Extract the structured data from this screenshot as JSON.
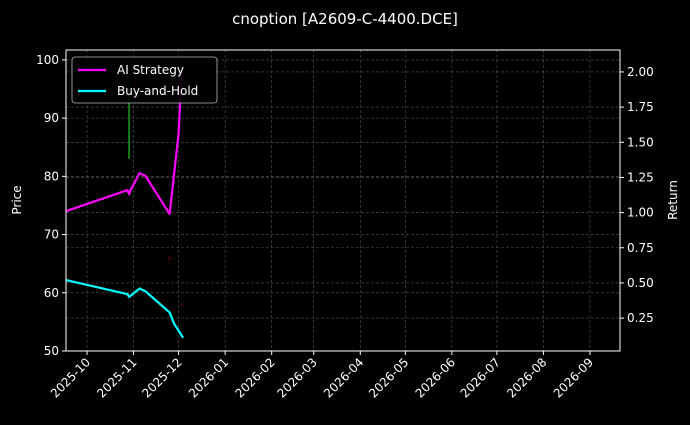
{
  "chart_data": {
    "type": "line",
    "title": "cnoption [A2609-C-4400.DCE]",
    "ylabel": "Price",
    "y2label": "Return",
    "xlim": [
      "2025-09-17",
      "2026-09-21"
    ],
    "ylim": [
      50,
      101.7
    ],
    "y2lim": [
      0.016,
      2.156
    ],
    "grid": true,
    "legend_placement": "top-left",
    "x_ticks": [
      "2025-10",
      "2025-11",
      "2025-12",
      "2026-01",
      "2026-02",
      "2026-03",
      "2026-04",
      "2026-05",
      "2026-06",
      "2026-07",
      "2026-08",
      "2026-09"
    ],
    "y_ticks": [
      50,
      60,
      70,
      80,
      90,
      100
    ],
    "y2_ticks": [
      "0.25",
      "0.50",
      "0.75",
      "1.00",
      "1.25",
      "1.50",
      "1.75",
      "2.00"
    ],
    "series": [
      {
        "name": "AI Strategy",
        "axis": "right",
        "color": "#ff00ff",
        "x": [
          "2025-09-17",
          "2025-10-28",
          "2025-10-29",
          "2025-10-30",
          "2025-11-05",
          "2025-11-09",
          "2025-11-25",
          "2025-12-01",
          "2025-12-03"
        ],
        "values": [
          1.01,
          1.16,
          1.13,
          1.16,
          1.28,
          1.26,
          0.99,
          1.56,
          2.0
        ]
      },
      {
        "name": "Buy-and-Hold",
        "axis": "right",
        "color": "#00ffff",
        "x": [
          "2025-09-17",
          "2025-10-28",
          "2025-10-29",
          "2025-11-05",
          "2025-11-09",
          "2025-11-25",
          "2025-11-28",
          "2025-12-04"
        ],
        "values": [
          0.52,
          0.42,
          0.4,
          0.46,
          0.44,
          0.29,
          0.21,
          0.11
        ]
      }
    ],
    "price_marks": [
      {
        "x": "2025-10-29",
        "low": 83,
        "high": 97,
        "color": "#1a9e1a"
      },
      {
        "x": "2025-11-25",
        "low": 65.8,
        "high": 66.2,
        "color": "#8b0000"
      },
      {
        "x": "2025-12-03",
        "low": 57.8,
        "high": 58.2,
        "color": "#8b0000"
      }
    ]
  }
}
